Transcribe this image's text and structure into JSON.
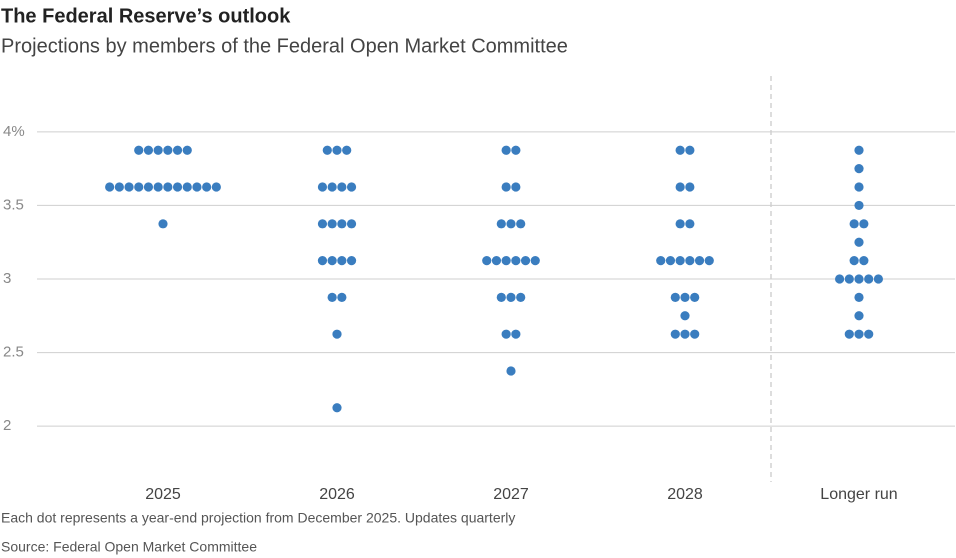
{
  "chart_data": {
    "type": "dot",
    "title": "The Federal Reserve’s outlook",
    "subtitle": "Projections by members of the Federal Open Market Committee",
    "note": "Each dot represents a year-end projection from December 2025. Updates quarterly",
    "source": "Source: Federal Open Market Committee",
    "categories": [
      "2025",
      "2026",
      "2027",
      "2028",
      "Longer run"
    ],
    "values": [
      [
        3.875,
        3.875,
        3.875,
        3.875,
        3.875,
        3.875,
        3.625,
        3.625,
        3.625,
        3.625,
        3.625,
        3.625,
        3.625,
        3.625,
        3.625,
        3.625,
        3.625,
        3.625,
        3.375
      ],
      [
        3.875,
        3.875,
        3.875,
        3.625,
        3.625,
        3.625,
        3.625,
        3.375,
        3.375,
        3.375,
        3.375,
        3.125,
        3.125,
        3.125,
        3.125,
        2.875,
        2.875,
        2.625,
        2.125
      ],
      [
        3.875,
        3.875,
        3.625,
        3.625,
        3.375,
        3.375,
        3.375,
        3.125,
        3.125,
        3.125,
        3.125,
        3.125,
        3.125,
        2.875,
        2.875,
        2.875,
        2.625,
        2.625,
        2.375
      ],
      [
        3.875,
        3.875,
        3.625,
        3.625,
        3.375,
        3.375,
        3.125,
        3.125,
        3.125,
        3.125,
        3.125,
        3.125,
        2.875,
        2.875,
        2.875,
        2.75,
        2.625,
        2.625,
        2.625
      ],
      [
        3.875,
        3.75,
        3.625,
        3.5,
        3.375,
        3.375,
        3.25,
        3.125,
        3.125,
        3.0,
        3.0,
        3.0,
        3.0,
        3.0,
        2.875,
        2.75,
        2.625,
        2.625,
        2.625
      ]
    ],
    "color": "#3a7dbf",
    "ylim": [
      1.6,
      4.4
    ],
    "yticks": [
      {
        "value": 2,
        "label": "2"
      },
      {
        "value": 2.5,
        "label": "2.5"
      },
      {
        "value": 3,
        "label": "3"
      },
      {
        "value": 3.5,
        "label": "3.5"
      },
      {
        "value": 4,
        "label": "4%"
      }
    ],
    "grid": true
  }
}
